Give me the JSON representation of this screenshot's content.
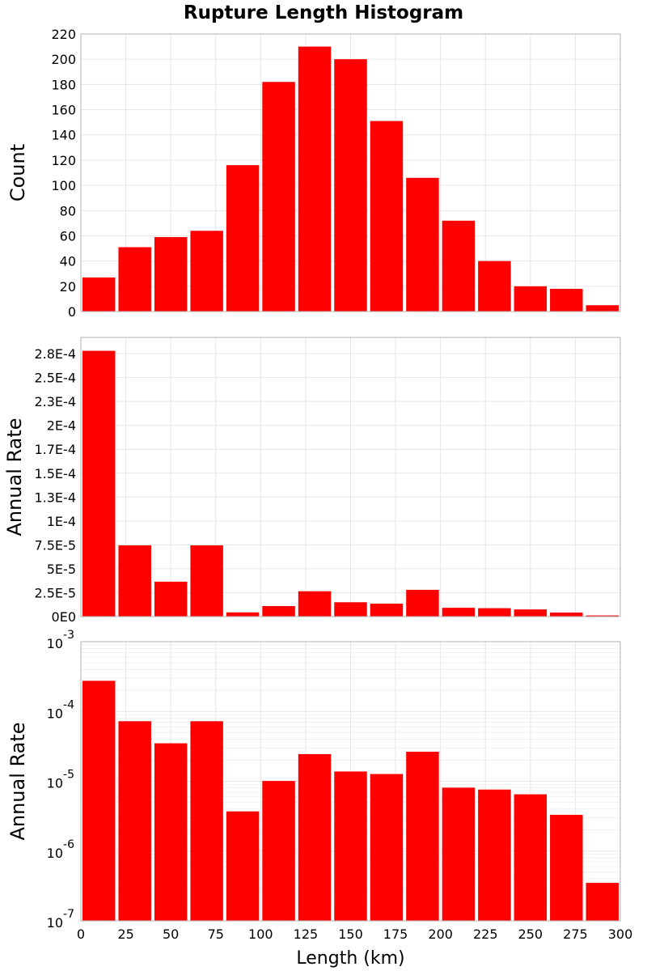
{
  "colors": {
    "bar": "#ff0000",
    "grid": "#e6e6e6",
    "frame": "#b3b3b3"
  },
  "title": "Rupture Length Histogram",
  "chart_data": [
    {
      "type": "bar",
      "ylabel": "Count",
      "xlim": [
        0,
        300
      ],
      "ylim": [
        0,
        220
      ],
      "yticks": [
        0,
        20,
        40,
        60,
        80,
        100,
        120,
        140,
        160,
        180,
        200,
        220
      ],
      "ytick_labels": [
        "0",
        "20",
        "40",
        "60",
        "80",
        "100",
        "120",
        "140",
        "160",
        "180",
        "200",
        "220"
      ],
      "grid": true,
      "bin_width": 20,
      "x": [
        10,
        30,
        50,
        70,
        90,
        110,
        130,
        150,
        170,
        190,
        210,
        230,
        250,
        270,
        290
      ],
      "values": [
        27,
        51,
        59,
        64,
        116,
        182,
        210,
        200,
        151,
        106,
        72,
        40,
        20,
        18,
        5
      ]
    },
    {
      "type": "bar",
      "ylabel": "Annual Rate",
      "xlim": [
        0,
        300
      ],
      "ylim": [
        0,
        0.000292
      ],
      "yticks": [
        0,
        2.5e-05,
        5e-05,
        7.5e-05,
        0.0001,
        0.000125,
        0.00015,
        0.000175,
        0.0002,
        0.000225,
        0.00025,
        0.000275
      ],
      "ytick_labels": [
        "0E0",
        "2.5E-5",
        "5E-5",
        "7.5E-5",
        "1E-4",
        "1.3E-4",
        "1.5E-4",
        "1.7E-4",
        "2E-4",
        "2.3E-4",
        "2.5E-4",
        "2.8E-4"
      ],
      "grid": true,
      "bin_width": 20,
      "x": [
        10,
        30,
        50,
        70,
        90,
        110,
        130,
        150,
        170,
        190,
        210,
        230,
        250,
        270,
        290
      ],
      "values": [
        0.000278,
        7.45e-05,
        3.65e-05,
        7.45e-05,
        4.4e-06,
        1.1e-05,
        2.65e-05,
        1.5e-05,
        1.35e-05,
        2.8e-05,
        9.2e-06,
        8.8e-06,
        7.5e-06,
        4.2e-06,
        1.2e-06
      ]
    },
    {
      "type": "bar",
      "ylabel": "Annual Rate",
      "xlabel": "Length (km)",
      "xlim": [
        0,
        300
      ],
      "yscale": "log",
      "ylim": [
        1e-07,
        0.001
      ],
      "ytick_exponents": [
        -7,
        -6,
        -5,
        -4,
        -3
      ],
      "ytick_base": "10",
      "xticks": [
        0,
        25,
        50,
        75,
        100,
        125,
        150,
        175,
        200,
        225,
        250,
        275,
        300
      ],
      "xtick_labels": [
        "0",
        "25",
        "50",
        "75",
        "100",
        "125",
        "150",
        "175",
        "200",
        "225",
        "250",
        "275",
        "300"
      ],
      "grid": true,
      "bin_width": 20,
      "x": [
        10,
        30,
        50,
        70,
        90,
        110,
        130,
        150,
        170,
        190,
        210,
        230,
        250,
        270,
        290
      ],
      "values": [
        0.000275,
        7.25e-05,
        3.5e-05,
        7.25e-05,
        3.7e-06,
        1.01e-05,
        2.45e-05,
        1.38e-05,
        1.27e-05,
        2.65e-05,
        8.1e-06,
        7.6e-06,
        6.5e-06,
        3.3e-06,
        3.5e-07
      ]
    }
  ]
}
